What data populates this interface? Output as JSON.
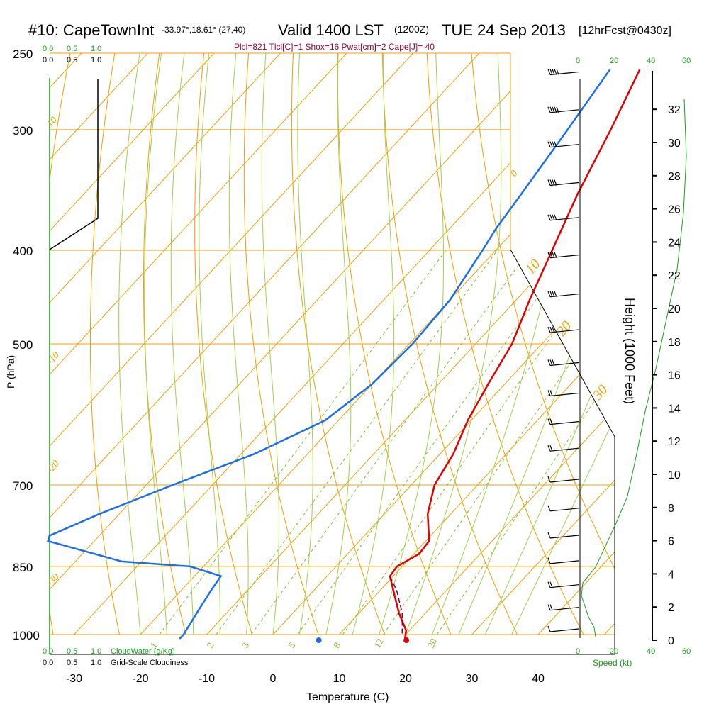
{
  "header": {
    "station": "#10: CapeTownInt",
    "coords": "-33.97°,18.61° (27,40)",
    "valid": "Valid 1400 LST",
    "utc": "(1200Z)",
    "date": "TUE 24 Sep 2013",
    "forecast": "[12hrFcst@0430z]"
  },
  "indices": "Plcl=821 Tlcl[C]=1 Shox=16 Pwat[cm]=2 Cape[J]= 40",
  "colors": {
    "temperature": "#e00000",
    "dewpoint": "#1a6fe8",
    "parcel": "#800040",
    "isotherm": "#f0a000",
    "dry_adiabat": "#8ccc2a",
    "moist_adiabat": "#a0d050",
    "mixing_ratio": "#80c020",
    "green_text": "#1aa01a",
    "indices_text": "#a0003c"
  },
  "scales": {
    "cloud_water_ticks": [
      "0.0",
      "0.5",
      "1.0"
    ],
    "cloudiness_ticks": [
      "0.0",
      "0.5",
      "1.0"
    ],
    "cloud_water_label": "CloudWater (g/Kg)",
    "cloudiness_label": "Grid-Scale Cloudiness",
    "speed_ticks": [
      "0",
      "20",
      "40",
      "60"
    ],
    "speed_label": "Speed (kt)"
  },
  "chart_data": {
    "type": "skew-t log-p sounding",
    "xlabel": "Temperature (C)",
    "ylabel": "P (hPa)",
    "y2label": "Height (1000 Feet)",
    "x_ticks": [
      -30,
      -20,
      -10,
      0,
      10,
      20,
      30,
      40
    ],
    "p_ticks": [
      250,
      300,
      400,
      500,
      700,
      850,
      1000
    ],
    "height_ticks": [
      0,
      2,
      4,
      6,
      8,
      10,
      12,
      14,
      16,
      18,
      20,
      22,
      24,
      26,
      28,
      30,
      32
    ],
    "isotherm_labels": [
      {
        "text": "10"
      },
      {
        "text": "0"
      },
      {
        "text": "-10"
      },
      {
        "text": "-20"
      },
      {
        "text": "-30"
      },
      {
        "text": "10"
      },
      {
        "text": "20"
      },
      {
        "text": "30"
      }
    ],
    "mixing_ratio_labels": [
      "1",
      "2",
      "3",
      "5",
      "8",
      "12",
      "20"
    ],
    "temperature": [
      {
        "p": 260,
        "t": -23.5
      },
      {
        "p": 300,
        "t": -19.5
      },
      {
        "p": 350,
        "t": -15.5
      },
      {
        "p": 400,
        "t": -11.5
      },
      {
        "p": 450,
        "t": -8
      },
      {
        "p": 500,
        "t": -4.5
      },
      {
        "p": 550,
        "t": -2.5
      },
      {
        "p": 600,
        "t": -0.5
      },
      {
        "p": 650,
        "t": 2
      },
      {
        "p": 700,
        "t": 3.5
      },
      {
        "p": 750,
        "t": 6.5
      },
      {
        "p": 800,
        "t": 10.5
      },
      {
        "p": 825,
        "t": 10.8
      },
      {
        "p": 850,
        "t": 9.2
      },
      {
        "p": 870,
        "t": 9.5
      },
      {
        "p": 900,
        "t": 12
      },
      {
        "p": 950,
        "t": 16
      },
      {
        "p": 990,
        "t": 19.5
      },
      {
        "p": 1010,
        "t": 20.5
      }
    ],
    "dewpoint": [
      {
        "p": 260,
        "t": -28
      },
      {
        "p": 300,
        "t": -26
      },
      {
        "p": 350,
        "t": -24
      },
      {
        "p": 380,
        "t": -23
      },
      {
        "p": 400,
        "t": -22
      },
      {
        "p": 450,
        "t": -20
      },
      {
        "p": 500,
        "t": -19.5
      },
      {
        "p": 550,
        "t": -20
      },
      {
        "p": 600,
        "t": -22
      },
      {
        "p": 650,
        "t": -28
      },
      {
        "p": 700,
        "t": -36
      },
      {
        "p": 750,
        "t": -43
      },
      {
        "p": 790,
        "t": -47.5
      },
      {
        "p": 800,
        "t": -47
      },
      {
        "p": 840,
        "t": -33
      },
      {
        "p": 850,
        "t": -22
      },
      {
        "p": 870,
        "t": -16
      },
      {
        "p": 900,
        "t": -15.5
      },
      {
        "p": 950,
        "t": -14.5
      },
      {
        "p": 1000,
        "t": -13.5
      },
      {
        "p": 1010,
        "t": -13.5
      }
    ],
    "parcel": [
      {
        "p": 870,
        "t": 9.5
      },
      {
        "p": 900,
        "t": 12.5
      },
      {
        "p": 950,
        "t": 16.5
      },
      {
        "p": 1000,
        "t": 19.5
      }
    ],
    "surface_temperature": 20.7,
    "surface_dewpoint": 7.5,
    "cloudiness": [
      {
        "p": 250,
        "value": 1.0
      },
      {
        "p": 380,
        "value": 1.0
      },
      {
        "p": 400,
        "value": 0.0
      }
    ],
    "wind_profile": [
      {
        "p": 265,
        "speed_kt": 45
      },
      {
        "p": 290,
        "speed_kt": 45
      },
      {
        "p": 315,
        "speed_kt": 42
      },
      {
        "p": 345,
        "speed_kt": 40
      },
      {
        "p": 375,
        "speed_kt": 38
      },
      {
        "p": 410,
        "speed_kt": 36
      },
      {
        "p": 450,
        "speed_kt": 35
      },
      {
        "p": 490,
        "speed_kt": 30
      },
      {
        "p": 530,
        "speed_kt": 25
      },
      {
        "p": 570,
        "speed_kt": 22
      },
      {
        "p": 610,
        "speed_kt": 20
      },
      {
        "p": 650,
        "speed_kt": 15
      },
      {
        "p": 700,
        "speed_kt": 12
      },
      {
        "p": 750,
        "speed_kt": 10
      },
      {
        "p": 800,
        "speed_kt": 8
      },
      {
        "p": 850,
        "speed_kt": 5
      },
      {
        "p": 900,
        "speed_kt": 15
      },
      {
        "p": 950,
        "speed_kt": 22
      },
      {
        "p": 1000,
        "speed_kt": 10
      }
    ]
  }
}
